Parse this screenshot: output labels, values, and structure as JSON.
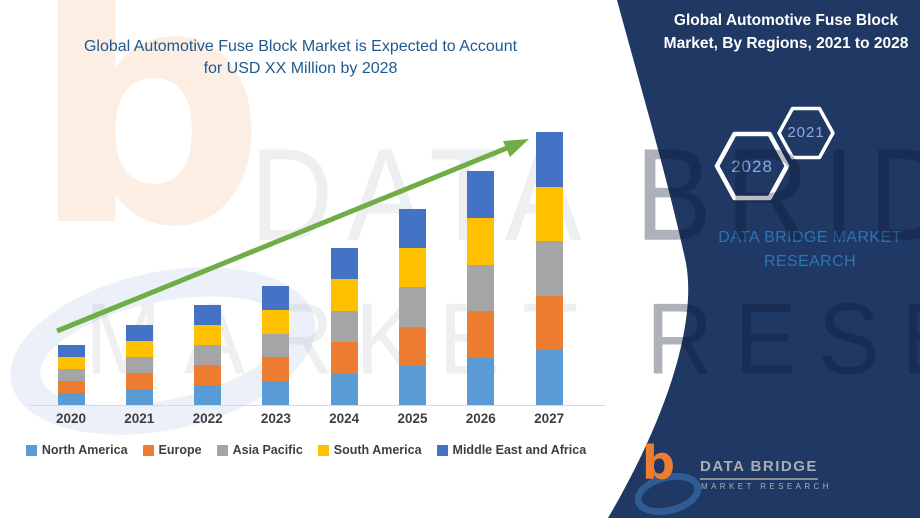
{
  "left_title": {
    "line1": "Global Automotive Fuse Block Market is Expected to Account",
    "line2": "for USD XX Million by 2028"
  },
  "panel": {
    "title": "Global Automotive Fuse Block Market, By Regions, 2021 to 2028",
    "hexagons": [
      {
        "label": "2028"
      },
      {
        "label": "2021"
      }
    ],
    "brand_line1": "DATA BRIDGE MARKET",
    "brand_line2": "RESEARCH"
  },
  "logo": {
    "name": "DATA BRIDGE",
    "subtitle": "MARKET RESEARCH"
  },
  "watermark": {
    "line1": "DATA BRIDGE",
    "line2": "MARKET RESEARCH"
  },
  "colors": {
    "panel_navy": "#1F3864",
    "left_title_blue": "#20598F",
    "brand_blue": "#2E74B5",
    "hexagon_year_blue": "#8EAADB",
    "arrow_green": "#70AD47",
    "axis_gray": "#D9D9D9",
    "label_gray": "#3F3F3F",
    "logo_orange": "#ED7D31",
    "logo_swoosh_blue": "#2F5C94",
    "logo_text_gray": "#A9ADB5"
  },
  "chart_data": {
    "type": "bar",
    "stacked": true,
    "categories": [
      "2020",
      "2021",
      "2022",
      "2023",
      "2024",
      "2025",
      "2026",
      "2027"
    ],
    "series": [
      {
        "name": "North America",
        "color": "#5B9BD5",
        "values": [
          12,
          16,
          20,
          23.8,
          31.4,
          39.2,
          46.8,
          54.6
        ]
      },
      {
        "name": "Europe",
        "color": "#ED7D31",
        "values": [
          12,
          16,
          20,
          23.8,
          31.4,
          39.2,
          46.8,
          54.6
        ]
      },
      {
        "name": "Asia Pacific",
        "color": "#A5A5A5",
        "values": [
          12,
          16,
          20,
          23.8,
          31.4,
          39.2,
          46.8,
          54.6
        ]
      },
      {
        "name": "South America",
        "color": "#FFC000",
        "values": [
          12,
          16,
          20,
          23.8,
          31.4,
          39.2,
          46.8,
          54.6
        ]
      },
      {
        "name": "Middle East and Africa",
        "color": "#4472C4",
        "values": [
          12,
          16,
          20,
          23.8,
          31.4,
          39.2,
          46.8,
          54.6
        ]
      }
    ],
    "totals": [
      60,
      80,
      100,
      119,
      157,
      196,
      234,
      273
    ],
    "title": "",
    "xlabel": "",
    "ylabel": "",
    "value_axis_labeled": false,
    "ylim": [
      0,
      280
    ],
    "grid": false,
    "legend_position": "bottom",
    "trend_arrow": {
      "from_category": "2020",
      "to_category": "2027",
      "direction": "up",
      "color": "#70AD47"
    }
  }
}
